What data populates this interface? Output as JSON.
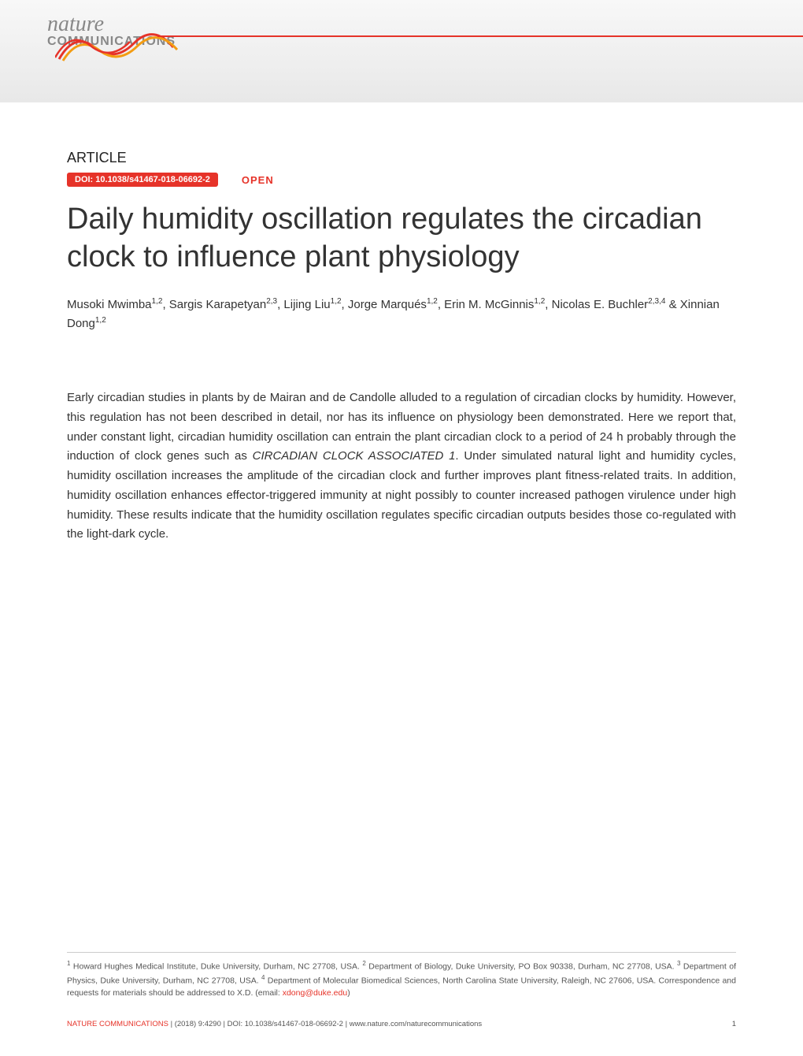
{
  "header": {
    "logo_nature": "nature",
    "logo_comm": "COMMUNICATIONS",
    "swirl_colors": [
      "#e63329",
      "#f39c12"
    ],
    "banner_bg_top": "#f8f8f8",
    "banner_bg_bottom": "#e8e8e8",
    "red_line_color": "#e63329"
  },
  "article": {
    "label": "ARTICLE",
    "doi": "DOI: 10.1038/s41467-018-06692-2",
    "open_label": "OPEN",
    "title": "Daily humidity oscillation regulates the circadian clock to influence plant physiology"
  },
  "authors": {
    "list_html": "Musoki Mwimba<sup>1,2</sup>, Sargis Karapetyan<sup>2,3</sup>, Lijing Liu<sup>1,2</sup>, Jorge Marqués<sup>1,2</sup>, Erin M. McGinnis<sup>1,2</sup>, Nicolas E. Buchler<sup>2,3,4</sup> & Xinnian Dong<sup>1,2</sup>"
  },
  "abstract": {
    "text_html": "Early circadian studies in plants by de Mairan and de Candolle alluded to a regulation of circadian clocks by humidity. However, this regulation has not been described in detail, nor has its influence on physiology been demonstrated. Here we report that, under constant light, circadian humidity oscillation can entrain the plant circadian clock to a period of 24 h probably through the induction of clock genes such as <em>CIRCADIAN CLOCK ASSOCIATED 1</em>. Under simulated natural light and humidity cycles, humidity oscillation increases the amplitude of the circadian clock and further improves plant fitness-related traits. In addition, humidity oscillation enhances effector-triggered immunity at night possibly to counter increased pathogen virulence under high humidity. These results indicate that the humidity oscillation regulates specific circadian outputs besides those co-regulated with the light-dark cycle."
  },
  "affiliations": {
    "text_html": "<sup>1</sup> Howard Hughes Medical Institute, Duke University, Durham, NC 27708, USA. <sup>2</sup> Department of Biology, Duke University, PO Box 90338, Durham, NC 27708, USA. <sup>3</sup> Department of Physics, Duke University, Durham, NC 27708, USA. <sup>4</sup> Department of Molecular Biomedical Sciences, North Carolina State University, Raleigh, NC 27606, USA. Correspondence and requests for materials should be addressed to X.D. (email: <span class=\"email-link\">xdong@duke.edu</span>)"
  },
  "citation": {
    "journal": "NATURE COMMUNICATIONS",
    "details": " |  (2018) 9:4290  | DOI: 10.1038/s41467-018-06692-2 | www.nature.com/naturecommunications",
    "page": "1"
  },
  "colors": {
    "accent_red": "#e63329",
    "text_dark": "#333333",
    "text_gray": "#888888",
    "text_footer": "#555555",
    "divider": "#cccccc",
    "bg": "#ffffff"
  },
  "typography": {
    "title_fontsize": 38,
    "title_weight": 300,
    "body_fontsize": 15,
    "affil_fontsize": 10.5,
    "citation_fontsize": 9.5
  }
}
